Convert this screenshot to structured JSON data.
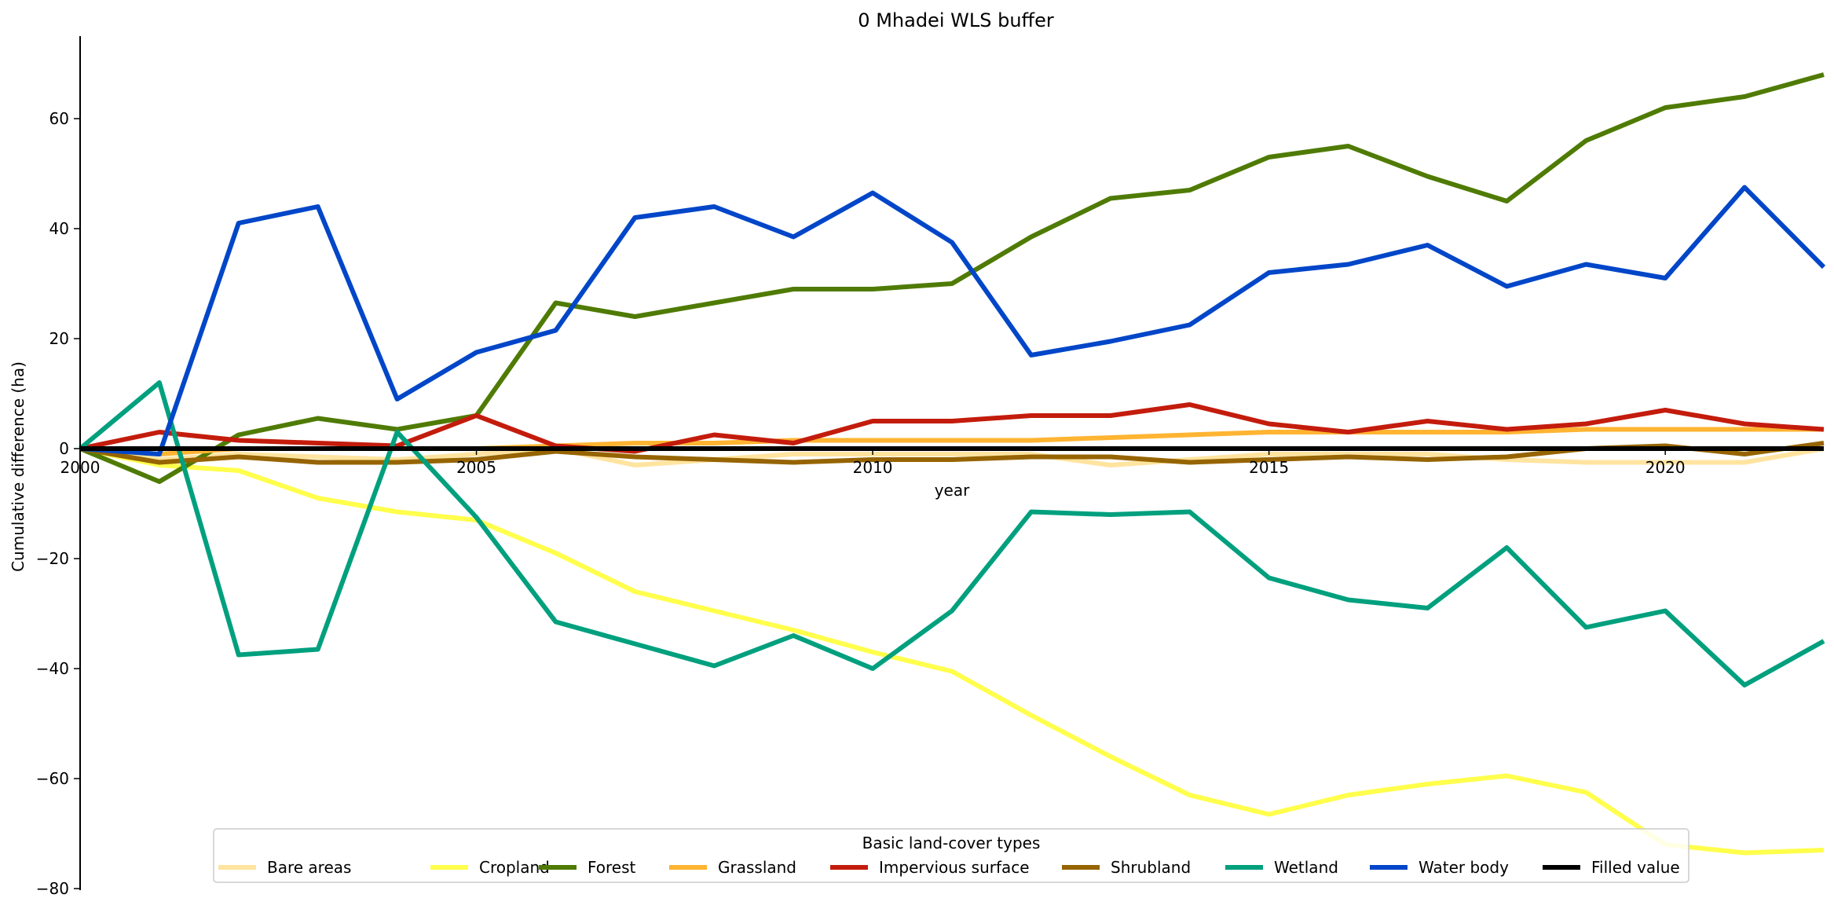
{
  "chart_data": {
    "type": "line",
    "title": "0 Mhadei WLS buffer",
    "xlabel": "year",
    "ylabel": "Cumulative difference (ha)",
    "xlim": [
      2000,
      2022
    ],
    "ylim": [
      -80,
      75
    ],
    "x_ticks": [
      2000,
      2005,
      2010,
      2015,
      2020
    ],
    "y_ticks": [
      -80,
      -60,
      -40,
      -20,
      0,
      20,
      40,
      60
    ],
    "x_tick_labels": [
      "2000",
      "2005",
      "2010",
      "2015",
      "2020"
    ],
    "y_tick_labels": [
      "−80",
      "−60",
      "−40",
      "−20",
      "0",
      "20",
      "40",
      "60"
    ],
    "grid": false,
    "legend": {
      "title": "Basic land-cover types",
      "placement": "bottom-center"
    },
    "x": [
      2000,
      2001,
      2002,
      2003,
      2004,
      2005,
      2006,
      2007,
      2008,
      2009,
      2010,
      2011,
      2012,
      2013,
      2014,
      2015,
      2016,
      2017,
      2018,
      2019,
      2020,
      2021,
      2022
    ],
    "series": [
      {
        "name": "Bare areas",
        "color": "#ffe4a0",
        "values": [
          0,
          -2,
          -1,
          -1.5,
          -2,
          -1,
          0,
          -3,
          -2,
          -1,
          -1,
          -1,
          -1,
          -3,
          -2,
          -1,
          -1,
          -1,
          -2,
          -2.5,
          -2.5,
          -2.5,
          0
        ]
      },
      {
        "name": "Cropland",
        "color": "#ffff4c",
        "values": [
          0,
          -3,
          -4,
          -9,
          -11.5,
          -13,
          -19,
          -26,
          -29.5,
          -33,
          -37,
          -40.5,
          -48.5,
          -56,
          -63,
          -66.5,
          -63,
          -61,
          -59.5,
          -62.5,
          -72,
          -73.5,
          -73
        ]
      },
      {
        "name": "Forest",
        "color": "#4f7b04",
        "values": [
          0,
          -6,
          2.5,
          5.5,
          3.5,
          6,
          26.5,
          24,
          26.5,
          29,
          29,
          30,
          38.5,
          45.5,
          47,
          53,
          55,
          49.5,
          45,
          56,
          62,
          64,
          68
        ]
      },
      {
        "name": "Grassland",
        "color": "#ffb432",
        "values": [
          0,
          -1,
          0,
          0,
          0,
          0,
          0.5,
          1,
          1,
          1.5,
          1.5,
          1.5,
          1.5,
          2,
          2.5,
          3,
          3,
          3,
          3,
          3.5,
          3.5,
          3.5,
          3.5
        ]
      },
      {
        "name": "Impervious surface",
        "color": "#c31c0c",
        "values": [
          0,
          3,
          1.5,
          1,
          0.5,
          6,
          0.5,
          -0.5,
          2.5,
          1,
          5,
          5,
          6,
          6,
          8,
          4.5,
          3,
          5,
          3.5,
          4.5,
          7,
          4.5,
          3.5
        ]
      },
      {
        "name": "Shrubland",
        "color": "#966400",
        "values": [
          0,
          -2.5,
          -1.5,
          -2.5,
          -2.5,
          -2,
          -0.5,
          -1.5,
          -2,
          -2.5,
          -2,
          -2,
          -1.5,
          -1.5,
          -2.5,
          -2,
          -1.5,
          -2,
          -1.5,
          0,
          0.5,
          -1,
          1
        ]
      },
      {
        "name": "Wetland",
        "color": "#00a07e",
        "values": [
          0,
          12,
          -37.5,
          -36.5,
          3,
          -12.5,
          -31.5,
          -35.5,
          -39.5,
          -34,
          -40,
          -29.5,
          -11.5,
          -12,
          -11.5,
          -23.5,
          -27.5,
          -29,
          -18,
          -32.5,
          -29.5,
          -43,
          -35
        ]
      },
      {
        "name": "Water body",
        "color": "#0046c8",
        "values": [
          0,
          -1,
          41,
          44,
          9,
          17.5,
          21.5,
          42,
          44,
          38.5,
          46.5,
          37.5,
          17,
          19.5,
          22.5,
          32,
          33.5,
          37,
          29.5,
          33.5,
          31,
          47.5,
          33
        ]
      },
      {
        "name": "Filled value",
        "color": "#000000",
        "values": [
          0,
          0,
          0,
          0,
          0,
          0,
          0,
          0,
          0,
          0,
          0,
          0,
          0,
          0,
          0,
          0,
          0,
          0,
          0,
          0,
          0,
          0,
          0
        ]
      }
    ]
  }
}
